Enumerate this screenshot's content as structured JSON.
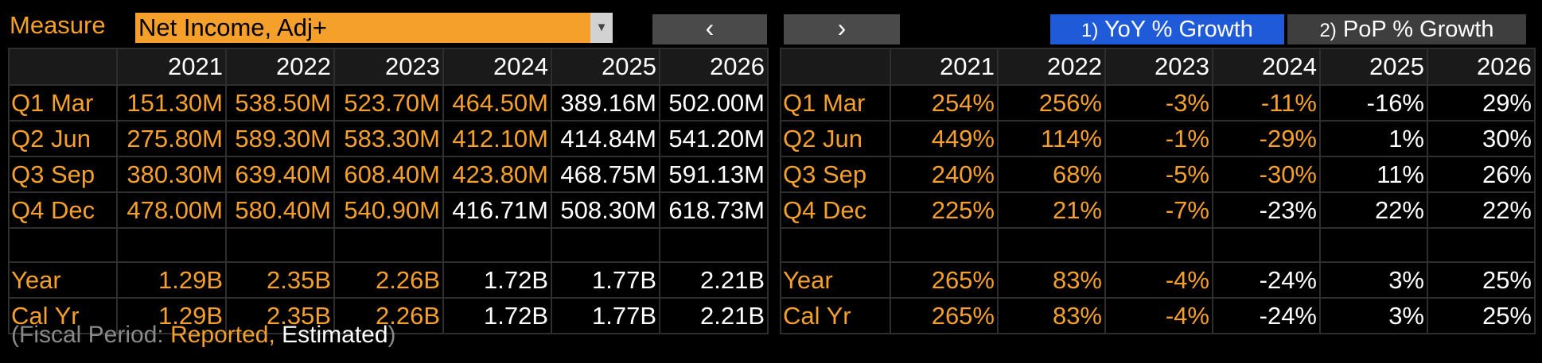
{
  "toolbar": {
    "measure_label": "Measure",
    "measure_value": "Net Income, Adj+",
    "caret": "▼",
    "prev_label": "‹",
    "next_label": "›",
    "tab1_num": "1)",
    "tab1_label": "YoY % Growth",
    "tab2_num": "2)",
    "tab2_label": "PoP % Growth"
  },
  "colors": {
    "reported": "#f5a02a",
    "estimated": "#ffffff",
    "active_tab": "#1f5ad9"
  },
  "values_table": {
    "years": [
      "2021",
      "2022",
      "2023",
      "2024",
      "2025",
      "2026"
    ],
    "rows": [
      {
        "label": "Q1 Mar",
        "cells": [
          {
            "v": "151.30M",
            "s": "r"
          },
          {
            "v": "538.50M",
            "s": "r"
          },
          {
            "v": "523.70M",
            "s": "r"
          },
          {
            "v": "464.50M",
            "s": "r"
          },
          {
            "v": "389.16M",
            "s": "e"
          },
          {
            "v": "502.00M",
            "s": "e"
          }
        ]
      },
      {
        "label": "Q2 Jun",
        "cells": [
          {
            "v": "275.80M",
            "s": "r"
          },
          {
            "v": "589.30M",
            "s": "r"
          },
          {
            "v": "583.30M",
            "s": "r"
          },
          {
            "v": "412.10M",
            "s": "r"
          },
          {
            "v": "414.84M",
            "s": "e"
          },
          {
            "v": "541.20M",
            "s": "e"
          }
        ]
      },
      {
        "label": "Q3 Sep",
        "cells": [
          {
            "v": "380.30M",
            "s": "r"
          },
          {
            "v": "639.40M",
            "s": "r"
          },
          {
            "v": "608.40M",
            "s": "r"
          },
          {
            "v": "423.80M",
            "s": "r"
          },
          {
            "v": "468.75M",
            "s": "e"
          },
          {
            "v": "591.13M",
            "s": "e"
          }
        ]
      },
      {
        "label": "Q4 Dec",
        "cells": [
          {
            "v": "478.00M",
            "s": "r"
          },
          {
            "v": "580.40M",
            "s": "r"
          },
          {
            "v": "540.90M",
            "s": "r"
          },
          {
            "v": "416.71M",
            "s": "e"
          },
          {
            "v": "508.30M",
            "s": "e"
          },
          {
            "v": "618.73M",
            "s": "e"
          }
        ]
      },
      {
        "label": "",
        "cells": [
          {
            "v": "",
            "s": "r"
          },
          {
            "v": "",
            "s": "r"
          },
          {
            "v": "",
            "s": "r"
          },
          {
            "v": "",
            "s": "r"
          },
          {
            "v": "",
            "s": "r"
          },
          {
            "v": "",
            "s": "r"
          }
        ]
      },
      {
        "label": "Year",
        "cells": [
          {
            "v": "1.29B",
            "s": "r"
          },
          {
            "v": "2.35B",
            "s": "r"
          },
          {
            "v": "2.26B",
            "s": "r"
          },
          {
            "v": "1.72B",
            "s": "e"
          },
          {
            "v": "1.77B",
            "s": "e"
          },
          {
            "v": "2.21B",
            "s": "e"
          }
        ]
      },
      {
        "label": "Cal Yr",
        "cells": [
          {
            "v": "1.29B",
            "s": "r"
          },
          {
            "v": "2.35B",
            "s": "r"
          },
          {
            "v": "2.26B",
            "s": "r"
          },
          {
            "v": "1.72B",
            "s": "e"
          },
          {
            "v": "1.77B",
            "s": "e"
          },
          {
            "v": "2.21B",
            "s": "e"
          }
        ]
      }
    ]
  },
  "growth_table": {
    "years": [
      "2021",
      "2022",
      "2023",
      "2024",
      "2025",
      "2026"
    ],
    "rows": [
      {
        "label": "Q1 Mar",
        "cells": [
          {
            "v": "254%",
            "s": "r"
          },
          {
            "v": "256%",
            "s": "r"
          },
          {
            "v": "-3%",
            "s": "r"
          },
          {
            "v": "-11%",
            "s": "r"
          },
          {
            "v": "-16%",
            "s": "e"
          },
          {
            "v": "29%",
            "s": "e"
          }
        ]
      },
      {
        "label": "Q2 Jun",
        "cells": [
          {
            "v": "449%",
            "s": "r"
          },
          {
            "v": "114%",
            "s": "r"
          },
          {
            "v": "-1%",
            "s": "r"
          },
          {
            "v": "-29%",
            "s": "r"
          },
          {
            "v": "1%",
            "s": "e"
          },
          {
            "v": "30%",
            "s": "e"
          }
        ]
      },
      {
        "label": "Q3 Sep",
        "cells": [
          {
            "v": "240%",
            "s": "r"
          },
          {
            "v": "68%",
            "s": "r"
          },
          {
            "v": "-5%",
            "s": "r"
          },
          {
            "v": "-30%",
            "s": "r"
          },
          {
            "v": "11%",
            "s": "e"
          },
          {
            "v": "26%",
            "s": "e"
          }
        ]
      },
      {
        "label": "Q4 Dec",
        "cells": [
          {
            "v": "225%",
            "s": "r"
          },
          {
            "v": "21%",
            "s": "r"
          },
          {
            "v": "-7%",
            "s": "r"
          },
          {
            "v": "-23%",
            "s": "e"
          },
          {
            "v": "22%",
            "s": "e"
          },
          {
            "v": "22%",
            "s": "e"
          }
        ]
      },
      {
        "label": "",
        "cells": [
          {
            "v": "",
            "s": "r"
          },
          {
            "v": "",
            "s": "r"
          },
          {
            "v": "",
            "s": "r"
          },
          {
            "v": "",
            "s": "r"
          },
          {
            "v": "",
            "s": "r"
          },
          {
            "v": "",
            "s": "r"
          }
        ]
      },
      {
        "label": "Year",
        "cells": [
          {
            "v": "265%",
            "s": "r"
          },
          {
            "v": "83%",
            "s": "r"
          },
          {
            "v": "-4%",
            "s": "r"
          },
          {
            "v": "-24%",
            "s": "e"
          },
          {
            "v": "3%",
            "s": "e"
          },
          {
            "v": "25%",
            "s": "e"
          }
        ]
      },
      {
        "label": "Cal Yr",
        "cells": [
          {
            "v": "265%",
            "s": "r"
          },
          {
            "v": "83%",
            "s": "r"
          },
          {
            "v": "-4%",
            "s": "r"
          },
          {
            "v": "-24%",
            "s": "e"
          },
          {
            "v": "3%",
            "s": "e"
          },
          {
            "v": "25%",
            "s": "e"
          }
        ]
      }
    ]
  },
  "footer": {
    "prefix": "(Fiscal Period: ",
    "reported": "Reported,",
    "estimated": " Estimated",
    "suffix": ")"
  }
}
